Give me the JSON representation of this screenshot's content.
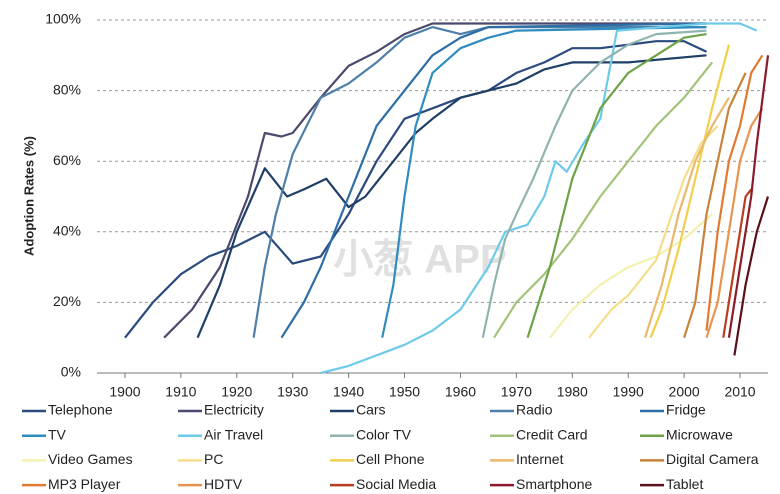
{
  "chart_data": {
    "type": "line",
    "y_label": "Adoption Rates (%)",
    "watermark": "小葱 APP",
    "xlim": [
      1895,
      2015
    ],
    "xticks": [
      1900,
      1910,
      1920,
      1930,
      1940,
      1950,
      1960,
      1970,
      1980,
      1990,
      2000,
      2010
    ],
    "ylim": [
      0,
      100
    ],
    "yticks": [
      {
        "value": 0,
        "label": "0%"
      },
      {
        "value": 20,
        "label": "20%"
      },
      {
        "value": 40,
        "label": "40%"
      },
      {
        "value": 60,
        "label": "60%"
      },
      {
        "value": 80,
        "label": "80%"
      },
      {
        "value": 100,
        "label": "100%"
      }
    ],
    "grid": true,
    "legend": "bottom",
    "series": [
      {
        "name": "Telephone",
        "color": "#2b4a7e",
        "x": [
          1900,
          1905,
          1910,
          1915,
          1920,
          1925,
          1930,
          1935,
          1940,
          1945,
          1950,
          1955,
          1960,
          1965,
          1970,
          1975,
          1980,
          1985,
          1990,
          1995,
          2000,
          2004
        ],
        "values": [
          10,
          20,
          28,
          33,
          36,
          40,
          31,
          33,
          45,
          60,
          72,
          75,
          78,
          80,
          85,
          88,
          92,
          92,
          93,
          94,
          94,
          91
        ]
      },
      {
        "name": "Electricity",
        "color": "#4a4a6e",
        "x": [
          1907,
          1912,
          1917,
          1922,
          1925,
          1928,
          1930,
          1935,
          1940,
          1945,
          1950,
          1955,
          1960,
          2004
        ],
        "values": [
          10,
          18,
          30,
          50,
          68,
          67,
          68,
          78,
          87,
          91,
          96,
          99,
          99,
          99
        ]
      },
      {
        "name": "Cars",
        "color": "#1f3f66",
        "x": [
          1913,
          1917,
          1920,
          1925,
          1929,
          1932,
          1936,
          1940,
          1943,
          1948,
          1952,
          1955,
          1960,
          1965,
          1970,
          1975,
          1980,
          1990,
          2004
        ],
        "values": [
          10,
          25,
          40,
          58,
          50,
          52,
          55,
          47,
          50,
          60,
          68,
          72,
          78,
          80,
          82,
          86,
          88,
          88,
          90
        ]
      },
      {
        "name": "Radio",
        "color": "#4f7fa8",
        "x": [
          1923,
          1925,
          1927,
          1930,
          1935,
          1940,
          1945,
          1950,
          1955,
          1960,
          1965,
          2004
        ],
        "values": [
          10,
          30,
          45,
          62,
          78,
          82,
          88,
          95,
          98,
          96,
          98,
          98
        ]
      },
      {
        "name": "Fridge",
        "color": "#2e6ea6",
        "x": [
          1928,
          1932,
          1935,
          1938,
          1940,
          1945,
          1950,
          1955,
          1960,
          1965,
          2004
        ],
        "values": [
          10,
          20,
          30,
          42,
          50,
          70,
          80,
          90,
          95,
          98,
          99
        ]
      },
      {
        "name": "TV",
        "color": "#2f8cc0",
        "x": [
          1946,
          1948,
          1950,
          1952,
          1955,
          1960,
          1965,
          1970,
          2004
        ],
        "values": [
          10,
          25,
          50,
          70,
          85,
          92,
          95,
          97,
          98
        ]
      },
      {
        "name": "Air Travel",
        "color": "#6ecae9",
        "x": [
          1935,
          1940,
          1945,
          1950,
          1955,
          1960,
          1965,
          1968,
          1972,
          1975,
          1977,
          1979,
          1982,
          1985,
          1988,
          2004,
          2010,
          2013
        ],
        "values": [
          0,
          2,
          5,
          8,
          12,
          18,
          30,
          40,
          42,
          50,
          60,
          57,
          65,
          72,
          97,
          99,
          99,
          97
        ]
      },
      {
        "name": "Color TV",
        "color": "#8fb4b0",
        "x": [
          1964,
          1966,
          1968,
          1970,
          1973,
          1977,
          1980,
          1985,
          1990,
          1995,
          2004
        ],
        "values": [
          10,
          25,
          38,
          45,
          55,
          70,
          80,
          88,
          93,
          96,
          97
        ]
      },
      {
        "name": "Credit Card",
        "color": "#a2c47a",
        "x": [
          1966,
          1970,
          1975,
          1980,
          1985,
          1990,
          1995,
          2000,
          2005
        ],
        "values": [
          10,
          20,
          28,
          38,
          50,
          60,
          70,
          78,
          88
        ]
      },
      {
        "name": "Microwave",
        "color": "#6ea246",
        "x": [
          1972,
          1976,
          1980,
          1985,
          1990,
          1995,
          2000,
          2004
        ],
        "values": [
          10,
          30,
          55,
          75,
          85,
          90,
          95,
          96
        ]
      },
      {
        "name": "Video Games",
        "color": "#f4f0b0",
        "x": [
          1976,
          1980,
          1985,
          1990,
          1995,
          2000,
          2005
        ],
        "values": [
          10,
          18,
          25,
          30,
          33,
          38,
          45
        ]
      },
      {
        "name": "PC",
        "color": "#f5dd8a",
        "x": [
          1983,
          1987,
          1990,
          1995,
          2000,
          2003,
          2006
        ],
        "values": [
          10,
          18,
          22,
          32,
          55,
          65,
          70
        ]
      },
      {
        "name": "Cell Phone",
        "color": "#f2cf4a",
        "x": [
          1994,
          1996,
          1999,
          2002,
          2005,
          2008
        ],
        "values": [
          10,
          18,
          35,
          55,
          75,
          93
        ]
      },
      {
        "name": "Internet",
        "color": "#e8b86b",
        "x": [
          1993,
          1996,
          1999,
          2002,
          2005,
          2008
        ],
        "values": [
          10,
          25,
          45,
          60,
          70,
          78
        ]
      },
      {
        "name": "Digital Camera",
        "color": "#c8823a",
        "x": [
          2000,
          2002,
          2004,
          2006,
          2008,
          2011
        ],
        "values": [
          10,
          20,
          45,
          60,
          75,
          85
        ]
      },
      {
        "name": "MP3 Player",
        "color": "#e07a30",
        "x": [
          2004,
          2006,
          2008,
          2010,
          2012,
          2014
        ],
        "values": [
          12,
          40,
          60,
          70,
          85,
          90
        ]
      },
      {
        "name": "HDTV",
        "color": "#e89450",
        "x": [
          2004,
          2006,
          2008,
          2010,
          2012,
          2014
        ],
        "values": [
          10,
          20,
          40,
          60,
          70,
          75
        ]
      },
      {
        "name": "Social Media",
        "color": "#b83c20",
        "x": [
          2007,
          2009,
          2011,
          2012
        ],
        "values": [
          10,
          30,
          50,
          52
        ]
      },
      {
        "name": "Smartphone",
        "color": "#8b1a2a",
        "x": [
          2008,
          2010,
          2012,
          2013,
          2015
        ],
        "values": [
          10,
          30,
          50,
          65,
          90
        ]
      },
      {
        "name": "Tablet",
        "color": "#5a0f1a",
        "x": [
          2009,
          2011,
          2013,
          2015
        ],
        "values": [
          5,
          25,
          40,
          50
        ]
      }
    ]
  }
}
